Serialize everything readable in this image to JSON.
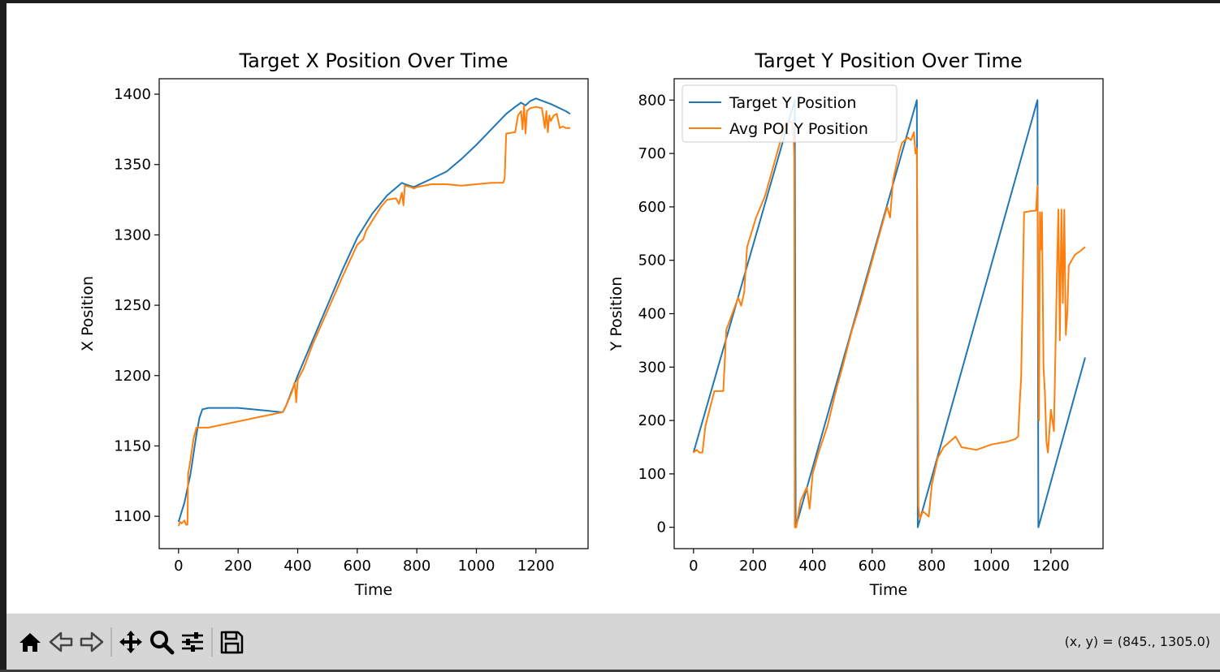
{
  "window": {
    "toolbar_coords": "(x, y) = (845., 1305.0)"
  },
  "toolbar": {
    "buttons": [
      "home-icon",
      "back-arrow-icon",
      "forward-arrow-icon",
      "pan-move-icon",
      "zoom-magnifier-icon",
      "configure-subplots-icon",
      "save-floppy-icon"
    ]
  },
  "colors": {
    "series1": "#1f77b4",
    "series2": "#ff7f0e"
  },
  "chart_data": [
    {
      "type": "line",
      "title": "Target X Position Over Time",
      "xlabel": "Time",
      "ylabel": "X Position",
      "xlim": [
        -65,
        1375
      ],
      "ylim": [
        1077,
        1411
      ],
      "xticks": [
        0,
        200,
        400,
        600,
        800,
        1000,
        1200
      ],
      "yticks": [
        1100,
        1150,
        1200,
        1250,
        1300,
        1350,
        1400
      ],
      "grid": false,
      "series": [
        {
          "color": "#1f77b4",
          "points": [
            [
              0,
              1096
            ],
            [
              20,
              1110
            ],
            [
              40,
              1130
            ],
            [
              60,
              1158
            ],
            [
              70,
              1170
            ],
            [
              80,
              1176
            ],
            [
              100,
              1177
            ],
            [
              200,
              1177
            ],
            [
              300,
              1175
            ],
            [
              340,
              1174
            ],
            [
              350,
              1174
            ],
            [
              360,
              1178
            ],
            [
              400,
              1200
            ],
            [
              450,
              1225
            ],
            [
              500,
              1250
            ],
            [
              550,
              1275
            ],
            [
              600,
              1298
            ],
            [
              650,
              1315
            ],
            [
              700,
              1328
            ],
            [
              750,
              1337
            ],
            [
              760,
              1336
            ],
            [
              790,
              1334
            ],
            [
              800,
              1335
            ],
            [
              850,
              1340
            ],
            [
              900,
              1345
            ],
            [
              950,
              1354
            ],
            [
              1000,
              1364
            ],
            [
              1050,
              1375
            ],
            [
              1100,
              1386
            ],
            [
              1130,
              1391
            ],
            [
              1150,
              1394
            ],
            [
              1165,
              1392
            ],
            [
              1180,
              1395
            ],
            [
              1200,
              1397
            ],
            [
              1250,
              1393
            ],
            [
              1300,
              1388
            ],
            [
              1315,
              1386
            ]
          ]
        },
        {
          "color": "#ff7f0e",
          "points": [
            [
              0,
              1093
            ],
            [
              5,
              1096
            ],
            [
              10,
              1095
            ],
            [
              20,
              1097
            ],
            [
              25,
              1094
            ],
            [
              30,
              1094
            ],
            [
              32,
              1130
            ],
            [
              40,
              1140
            ],
            [
              50,
              1155
            ],
            [
              60,
              1163
            ],
            [
              100,
              1163
            ],
            [
              350,
              1174
            ],
            [
              360,
              1178
            ],
            [
              380,
              1188
            ],
            [
              390,
              1195
            ],
            [
              395,
              1181
            ],
            [
              400,
              1197
            ],
            [
              420,
              1205
            ],
            [
              450,
              1222
            ],
            [
              500,
              1246
            ],
            [
              550,
              1270
            ],
            [
              600,
              1293
            ],
            [
              620,
              1297
            ],
            [
              630,
              1303
            ],
            [
              650,
              1310
            ],
            [
              680,
              1320
            ],
            [
              700,
              1325
            ],
            [
              730,
              1326
            ],
            [
              740,
              1322
            ],
            [
              750,
              1330
            ],
            [
              755,
              1321
            ],
            [
              760,
              1335
            ],
            [
              780,
              1334
            ],
            [
              790,
              1333
            ],
            [
              800,
              1334
            ],
            [
              850,
              1336
            ],
            [
              900,
              1336
            ],
            [
              950,
              1335
            ],
            [
              1000,
              1336
            ],
            [
              1050,
              1337
            ],
            [
              1090,
              1337
            ],
            [
              1095,
              1340
            ],
            [
              1100,
              1372
            ],
            [
              1130,
              1373
            ],
            [
              1140,
              1385
            ],
            [
              1150,
              1388
            ],
            [
              1155,
              1375
            ],
            [
              1160,
              1392
            ],
            [
              1165,
              1372
            ],
            [
              1170,
              1388
            ],
            [
              1180,
              1390
            ],
            [
              1200,
              1391
            ],
            [
              1220,
              1390
            ],
            [
              1230,
              1376
            ],
            [
              1235,
              1388
            ],
            [
              1240,
              1373
            ],
            [
              1245,
              1385
            ],
            [
              1250,
              1381
            ],
            [
              1260,
              1385
            ],
            [
              1270,
              1386
            ],
            [
              1280,
              1376
            ],
            [
              1290,
              1377
            ],
            [
              1300,
              1376
            ],
            [
              1315,
              1376
            ]
          ]
        }
      ]
    },
    {
      "type": "line",
      "title": "Target Y Position Over Time",
      "xlabel": "Time",
      "ylabel": "Y Position",
      "xlim": [
        -65,
        1375
      ],
      "ylim": [
        -40,
        840
      ],
      "xticks": [
        0,
        200,
        400,
        600,
        800,
        1000,
        1200
      ],
      "yticks": [
        0,
        100,
        200,
        300,
        400,
        500,
        600,
        700,
        800
      ],
      "grid": false,
      "legend": {
        "position": "top-left",
        "entries": [
          "Target Y Position",
          "Avg POI Y Position"
        ]
      },
      "series": [
        {
          "name": "Target Y Position",
          "color": "#1f77b4",
          "points": [
            [
              0,
              140
            ],
            [
              340,
              800
            ],
            [
              343,
              0
            ],
            [
              750,
              800
            ],
            [
              753,
              0
            ],
            [
              1155,
              800
            ],
            [
              1158,
              0
            ],
            [
              1315,
              318
            ]
          ]
        },
        {
          "name": "Avg POI Y Position",
          "color": "#ff7f0e",
          "points": [
            [
              0,
              140
            ],
            [
              10,
              145
            ],
            [
              20,
              140
            ],
            [
              30,
              140
            ],
            [
              40,
              190
            ],
            [
              70,
              255
            ],
            [
              100,
              255
            ],
            [
              110,
              370
            ],
            [
              150,
              430
            ],
            [
              160,
              415
            ],
            [
              170,
              440
            ],
            [
              180,
              525
            ],
            [
              210,
              580
            ],
            [
              240,
              620
            ],
            [
              260,
              660
            ],
            [
              290,
              720
            ],
            [
              310,
              755
            ],
            [
              330,
              760
            ],
            [
              335,
              740
            ],
            [
              338,
              700
            ],
            [
              340,
              0
            ],
            [
              345,
              0
            ],
            [
              350,
              20
            ],
            [
              360,
              50
            ],
            [
              380,
              75
            ],
            [
              390,
              35
            ],
            [
              400,
              100
            ],
            [
              420,
              140
            ],
            [
              450,
              190
            ],
            [
              480,
              260
            ],
            [
              500,
              300
            ],
            [
              530,
              365
            ],
            [
              560,
              420
            ],
            [
              590,
              480
            ],
            [
              620,
              540
            ],
            [
              650,
              600
            ],
            [
              660,
              580
            ],
            [
              670,
              650
            ],
            [
              690,
              700
            ],
            [
              700,
              720
            ],
            [
              720,
              730
            ],
            [
              730,
              725
            ],
            [
              740,
              740
            ],
            [
              745,
              700
            ],
            [
              750,
              710
            ],
            [
              752,
              500
            ],
            [
              755,
              40
            ],
            [
              760,
              15
            ],
            [
              770,
              30
            ],
            [
              780,
              25
            ],
            [
              790,
              20
            ],
            [
              800,
              80
            ],
            [
              820,
              130
            ],
            [
              840,
              150
            ],
            [
              860,
              160
            ],
            [
              880,
              170
            ],
            [
              900,
              150
            ],
            [
              950,
              145
            ],
            [
              1000,
              155
            ],
            [
              1050,
              160
            ],
            [
              1080,
              165
            ],
            [
              1090,
              170
            ],
            [
              1095,
              230
            ],
            [
              1100,
              280
            ],
            [
              1110,
              590
            ],
            [
              1130,
              592
            ],
            [
              1150,
              593
            ],
            [
              1155,
              640
            ],
            [
              1160,
              200
            ],
            [
              1163,
              590
            ],
            [
              1166,
              520
            ],
            [
              1170,
              590
            ],
            [
              1175,
              300
            ],
            [
              1180,
              250
            ],
            [
              1185,
              160
            ],
            [
              1190,
              140
            ],
            [
              1200,
              220
            ],
            [
              1210,
              180
            ],
            [
              1220,
              470
            ],
            [
              1225,
              595
            ],
            [
              1230,
              350
            ],
            [
              1235,
              595
            ],
            [
              1240,
              420
            ],
            [
              1245,
              595
            ],
            [
              1250,
              360
            ],
            [
              1255,
              400
            ],
            [
              1260,
              490
            ],
            [
              1270,
              500
            ],
            [
              1280,
              510
            ],
            [
              1300,
              518
            ],
            [
              1315,
              525
            ]
          ]
        }
      ]
    }
  ]
}
